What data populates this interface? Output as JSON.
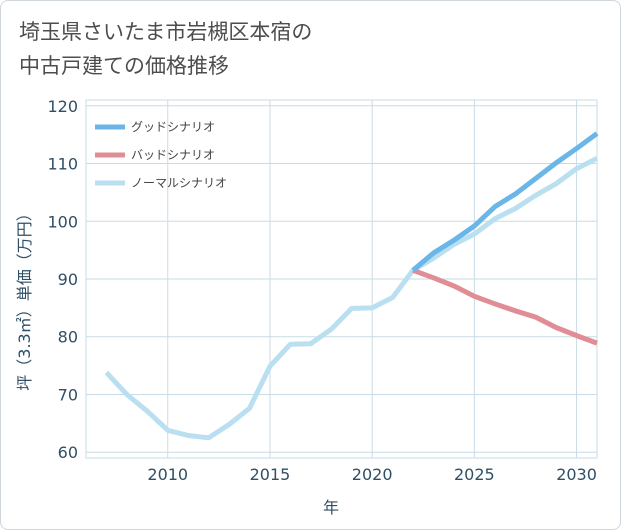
{
  "title_line1": "埼玉県さいたま市岩槻区本宿の",
  "title_line2": "中古戸建ての価格推移",
  "chart_data": {
    "type": "line",
    "title": "埼玉県さいたま市岩槻区本宿の中古戸建ての価格推移",
    "xlabel": "年",
    "ylabel": "坪（3.3㎡）単価（万円）",
    "xlim": [
      2006,
      2031
    ],
    "ylim": [
      59,
      121
    ],
    "xticks": [
      2010,
      2015,
      2020,
      2025,
      2030
    ],
    "yticks": [
      60,
      70,
      80,
      90,
      100,
      110,
      120
    ],
    "grid": true,
    "legend_position": "top-left",
    "series": [
      {
        "name": "グッドシナリオ",
        "color": "#6bb6e8",
        "x": [
          2022,
          2023,
          2024,
          2025,
          2026,
          2027,
          2028,
          2029,
          2030,
          2031
        ],
        "y": [
          91.5,
          94.5,
          96.7,
          99.2,
          102.5,
          104.7,
          107.4,
          110.1,
          112.6,
          115.2
        ]
      },
      {
        "name": "バッドシナリオ",
        "color": "#e08d95",
        "x": [
          2022,
          2023,
          2024,
          2025,
          2026,
          2027,
          2028,
          2029,
          2030,
          2031
        ],
        "y": [
          91.5,
          90.2,
          88.8,
          87.0,
          85.7,
          84.5,
          83.4,
          81.6,
          80.2,
          78.9
        ]
      },
      {
        "name": "ノーマルシナリオ",
        "color": "#b9dff0",
        "x": [
          2007,
          2008,
          2009,
          2010,
          2011,
          2012,
          2013,
          2014,
          2015,
          2016,
          2017,
          2018,
          2019,
          2020,
          2021,
          2022,
          2023,
          2024,
          2025,
          2026,
          2027,
          2028,
          2029,
          2030,
          2031
        ],
        "y": [
          73.8,
          70.0,
          67.1,
          63.8,
          62.9,
          62.5,
          64.8,
          67.6,
          74.9,
          78.7,
          78.8,
          81.3,
          84.9,
          85.0,
          86.8,
          91.5,
          93.6,
          96.0,
          97.8,
          100.4,
          102.2,
          104.5,
          106.5,
          109.1,
          110.9
        ]
      }
    ]
  }
}
